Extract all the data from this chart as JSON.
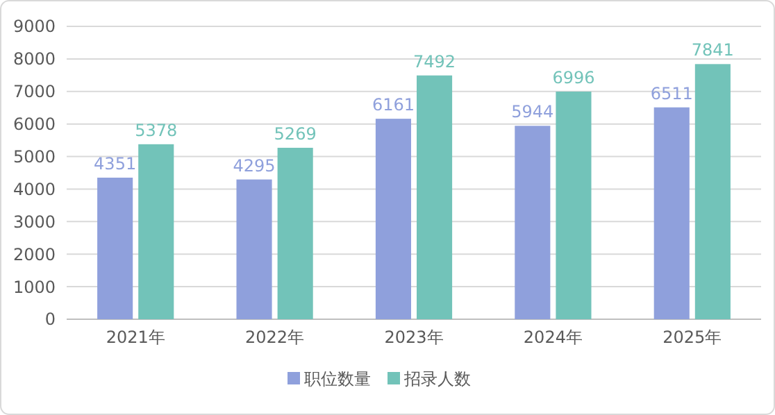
{
  "chart_data": {
    "type": "bar",
    "categories": [
      "2021年",
      "2022年",
      "2023年",
      "2024年",
      "2025年"
    ],
    "series": [
      {
        "name": "职位数量",
        "color": "#8fa0dc",
        "values": [
          4351,
          4295,
          6161,
          5944,
          6511
        ]
      },
      {
        "name": "招录人数",
        "color": "#72c3b9",
        "values": [
          5378,
          5269,
          7492,
          6996,
          7841
        ]
      }
    ],
    "ylim": [
      0,
      9000
    ],
    "yticks": [
      0,
      1000,
      2000,
      3000,
      4000,
      5000,
      6000,
      7000,
      8000,
      9000
    ],
    "grid": "y",
    "legend": "bottom",
    "data_labels": true
  }
}
